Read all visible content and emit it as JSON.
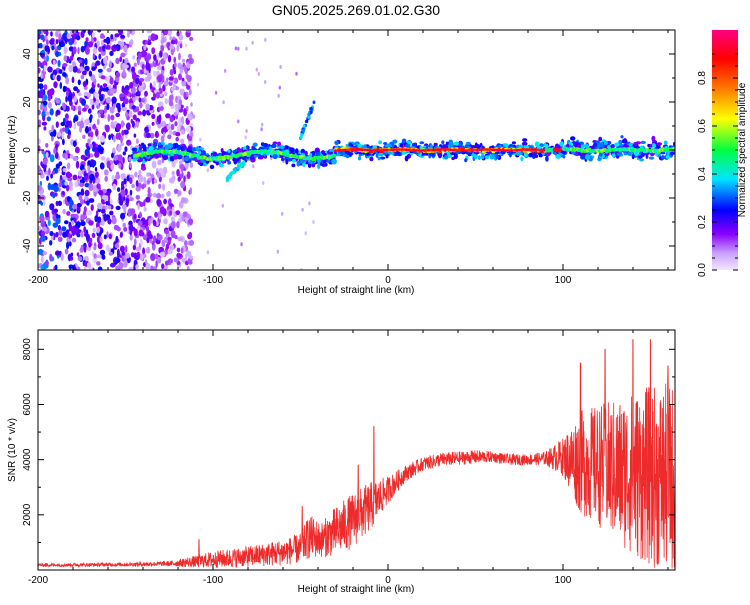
{
  "title": "GN05.2025.269.01.02.G30",
  "chart_data": [
    {
      "type": "heatmap",
      "xlabel": "Height of straight line (km)",
      "ylabel": "Frequency (Hz)",
      "xlim": [
        -200,
        164
      ],
      "ylim": [
        -50,
        50
      ],
      "x_ticks": [
        -200,
        -100,
        0,
        100
      ],
      "y_ticks": [
        -40,
        -20,
        0,
        20,
        40
      ],
      "colorbar": {
        "label": "Normalized spectral amplitude",
        "range": [
          0,
          1
        ],
        "ticks": [
          0.0,
          0.2,
          0.4,
          0.6,
          0.8
        ],
        "colors": [
          "#f2e6ff",
          "#c9a0ff",
          "#8a00ff",
          "#0000ff",
          "#00e5ff",
          "#00ff40",
          "#ffff00",
          "#ff7f00",
          "#ff0000",
          "#ff0080"
        ]
      },
      "noise_region": {
        "x_range": [
          -200,
          -112
        ],
        "freq_range": [
          -50,
          50
        ],
        "amplitude": [
          0.05,
          0.35
        ]
      },
      "features": [
        {
          "name": "main-trace",
          "x_range": [
            -145,
            164
          ],
          "freq_center": 0,
          "freq_halfwidth": 5,
          "peak_amplitude_range": [
            -30,
            90
          ],
          "peak_amplitude": 0.95
        },
        {
          "name": "secondary-branch",
          "x_range": [
            -50,
            -42
          ],
          "freq_range": [
            5,
            20
          ],
          "amplitude": 0.25
        },
        {
          "name": "low-branch",
          "x_range": [
            -92,
            -82
          ],
          "freq_range": [
            -12,
            -5
          ],
          "amplitude": 0.3
        }
      ]
    },
    {
      "type": "line",
      "xlabel": "Height of straight line (km)",
      "ylabel": "SNR (10 * v/v)",
      "xlim": [
        -200,
        164
      ],
      "ylim": [
        0,
        8700
      ],
      "x_ticks": [
        -200,
        -100,
        0,
        100
      ],
      "y_ticks": [
        2000,
        4000,
        6000,
        8000
      ],
      "series": [
        {
          "name": "SNR",
          "color": "#ee2b2b",
          "x": [
            -200,
            -150,
            -125,
            -110,
            -100,
            -90,
            -75,
            -60,
            -50,
            -45,
            -38,
            -30,
            -20,
            -10,
            0,
            10,
            20,
            30,
            40,
            50,
            60,
            70,
            80,
            90,
            100,
            110,
            120,
            130,
            140,
            150,
            164
          ],
          "mean": [
            180,
            200,
            230,
            300,
            380,
            430,
            520,
            640,
            780,
            1200,
            1100,
            1400,
            1800,
            2300,
            2900,
            3500,
            3850,
            4000,
            4050,
            4100,
            4100,
            4000,
            4000,
            4050,
            4100,
            3900,
            3800,
            3600,
            3500,
            3400,
            3300
          ],
          "spread": [
            60,
            70,
            90,
            220,
            300,
            350,
            400,
            480,
            550,
            800,
            650,
            900,
            1000,
            900,
            500,
            300,
            250,
            250,
            250,
            250,
            200,
            200,
            200,
            250,
            700,
            1900,
            2200,
            2600,
            3000,
            3300,
            3500
          ],
          "spikes": [
            {
              "x": -108,
              "y": 1100
            },
            {
              "x": -49,
              "y": 2300
            },
            {
              "x": -17,
              "y": 3800
            },
            {
              "x": -8,
              "y": 5200
            },
            {
              "x": 110,
              "y": 7500
            },
            {
              "x": 124,
              "y": 8000
            },
            {
              "x": 140,
              "y": 8350
            },
            {
              "x": 150,
              "y": 8350
            },
            {
              "x": 160,
              "y": 7400
            }
          ]
        }
      ]
    }
  ]
}
